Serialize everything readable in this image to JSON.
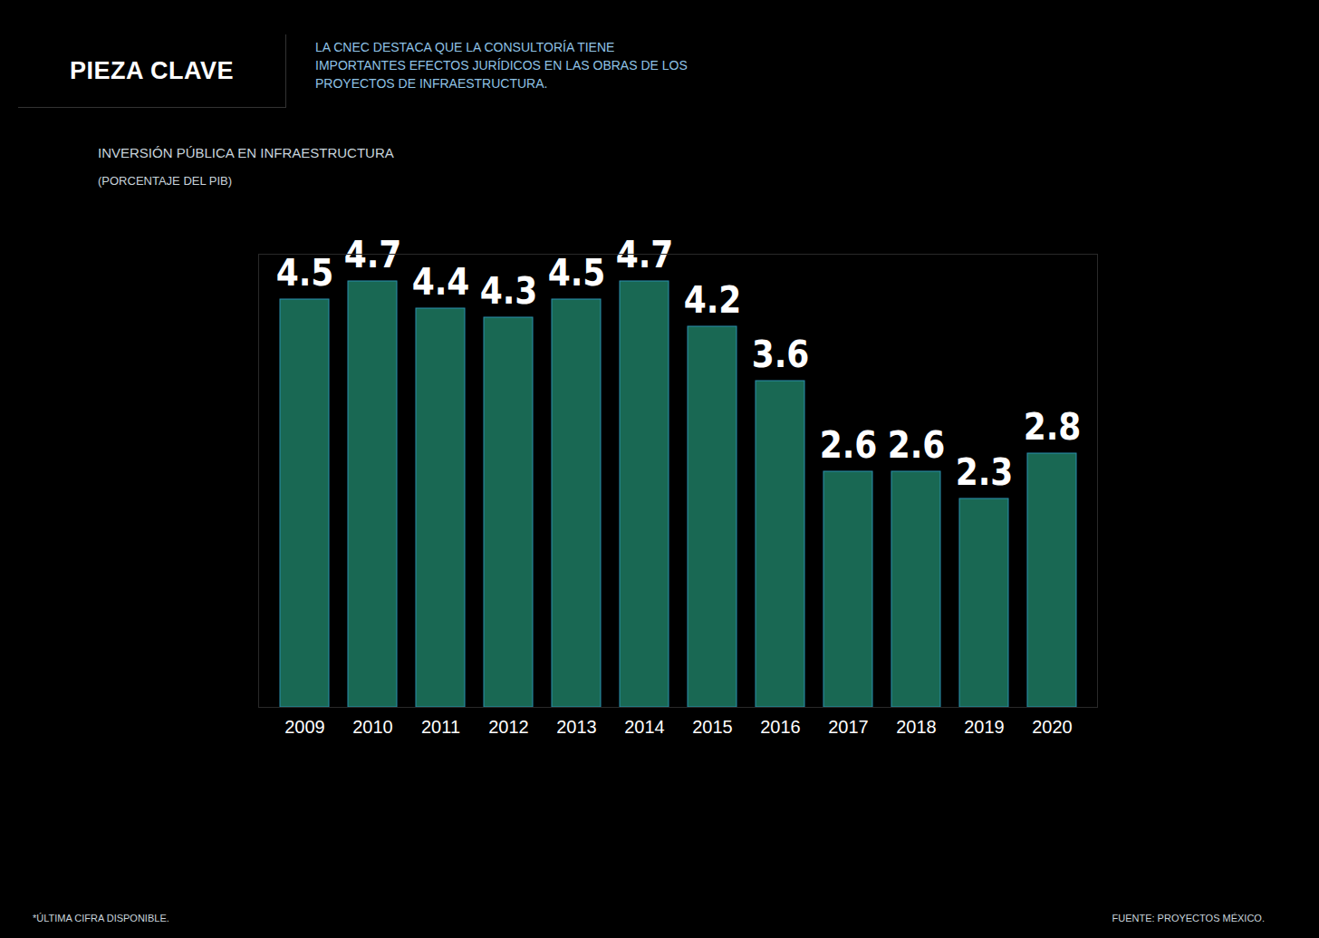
{
  "chart_data": {
    "type": "bar",
    "kicker": "PIEZA CLAVE",
    "description": "LA CNEC DESTACA QUE LA CONSULTORÍA TIENE IMPORTANTES EFECTOS JURÍDICOS EN LAS OBRAS DE LOS PROYECTOS DE INFRAESTRUCTURA.",
    "title": "INVERSIÓN PÚBLICA EN INFRAESTRUCTURA",
    "subtitle": "(PORCENTAJE DEL PIB)",
    "note": "*ÚLTIMA CIFRA DISPONIBLE.",
    "source": "FUENTE: PROYECTOS MÉXICO.",
    "categories": [
      "2009",
      "2010",
      "2011",
      "2012",
      "2013",
      "2014",
      "2015",
      "2016",
      "2017",
      "2018",
      "2019",
      "2020"
    ],
    "values": [
      4.5,
      4.7,
      4.4,
      4.3,
      4.5,
      4.7,
      4.2,
      3.6,
      2.6,
      2.6,
      2.3,
      2.8
    ],
    "color": "#1d7a62",
    "ylim": [
      0,
      5
    ],
    "data_labels": true,
    "tick_labels": "x",
    "grid": false
  }
}
